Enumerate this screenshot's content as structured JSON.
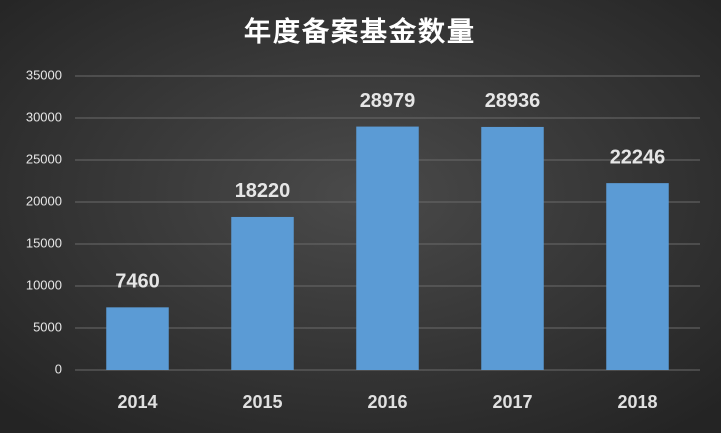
{
  "chart_data": {
    "type": "bar",
    "title": "年度备案基金数量",
    "categories": [
      "2014",
      "2015",
      "2016",
      "2017",
      "2018"
    ],
    "values": [
      7460,
      18220,
      28979,
      28936,
      22246
    ],
    "color": "#5b9bd5",
    "ylim": [
      0,
      35000
    ],
    "yticks": [
      0,
      5000,
      10000,
      15000,
      20000,
      25000,
      30000,
      35000
    ],
    "grid": true
  }
}
